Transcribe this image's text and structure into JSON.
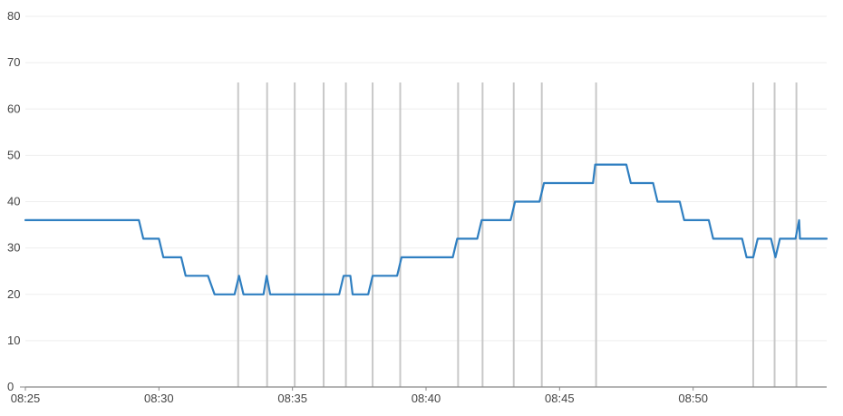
{
  "chart_data": {
    "type": "line",
    "title": "",
    "xlabel": "",
    "ylabel": "",
    "x_range": [
      "08:25",
      "08:55"
    ],
    "ylim": [
      0,
      80
    ],
    "grid": true,
    "y_ticks": [
      0,
      10,
      20,
      30,
      40,
      50,
      60,
      70,
      80
    ],
    "x_ticks": [
      "08:25",
      "08:30",
      "08:35",
      "08:40",
      "08:45",
      "08:50"
    ],
    "colors": {
      "line": "#2f7fc1",
      "grid": "#eeeeee",
      "marker": "#c8c8c8",
      "axis": "#888888"
    },
    "series": [
      {
        "points": [
          [
            "08:25:00",
            36
          ],
          [
            "08:29:15",
            36
          ],
          [
            "08:29:25",
            32
          ],
          [
            "08:30:00",
            32
          ],
          [
            "08:30:10",
            28
          ],
          [
            "08:30:50",
            28
          ],
          [
            "08:31:00",
            24
          ],
          [
            "08:31:50",
            24
          ],
          [
            "08:32:05",
            20
          ],
          [
            "08:32:50",
            20
          ],
          [
            "08:33:00",
            24
          ],
          [
            "08:33:10",
            20
          ],
          [
            "08:33:55",
            20
          ],
          [
            "08:34:02",
            24
          ],
          [
            "08:34:10",
            20
          ],
          [
            "08:36:45",
            20
          ],
          [
            "08:36:55",
            24
          ],
          [
            "08:37:10",
            24
          ],
          [
            "08:37:15",
            20
          ],
          [
            "08:37:50",
            20
          ],
          [
            "08:38:00",
            24
          ],
          [
            "08:38:55",
            24
          ],
          [
            "08:39:05",
            28
          ],
          [
            "08:41:00",
            28
          ],
          [
            "08:41:10",
            32
          ],
          [
            "08:41:55",
            32
          ],
          [
            "08:42:05",
            36
          ],
          [
            "08:43:10",
            36
          ],
          [
            "08:43:20",
            40
          ],
          [
            "08:44:15",
            40
          ],
          [
            "08:44:25",
            44
          ],
          [
            "08:46:15",
            44
          ],
          [
            "08:46:20",
            48
          ],
          [
            "08:47:30",
            48
          ],
          [
            "08:47:40",
            44
          ],
          [
            "08:48:30",
            44
          ],
          [
            "08:48:40",
            40
          ],
          [
            "08:49:30",
            40
          ],
          [
            "08:49:40",
            36
          ],
          [
            "08:50:35",
            36
          ],
          [
            "08:50:45",
            32
          ],
          [
            "08:51:50",
            32
          ],
          [
            "08:52:00",
            28
          ],
          [
            "08:52:15",
            28
          ],
          [
            "08:52:25",
            32
          ],
          [
            "08:52:55",
            32
          ],
          [
            "08:53:05",
            28
          ],
          [
            "08:53:15",
            32
          ],
          [
            "08:53:50",
            32
          ],
          [
            "08:53:58",
            36
          ],
          [
            "08:54:00",
            32
          ],
          [
            "08:55:00",
            32
          ]
        ]
      }
    ],
    "event_markers": [
      "08:32:58",
      "08:34:03",
      "08:35:05",
      "08:36:10",
      "08:37:00",
      "08:38:00",
      "08:39:02",
      "08:41:12",
      "08:42:07",
      "08:43:17",
      "08:44:20",
      "08:46:22",
      "08:52:15",
      "08:53:03",
      "08:53:52"
    ]
  }
}
